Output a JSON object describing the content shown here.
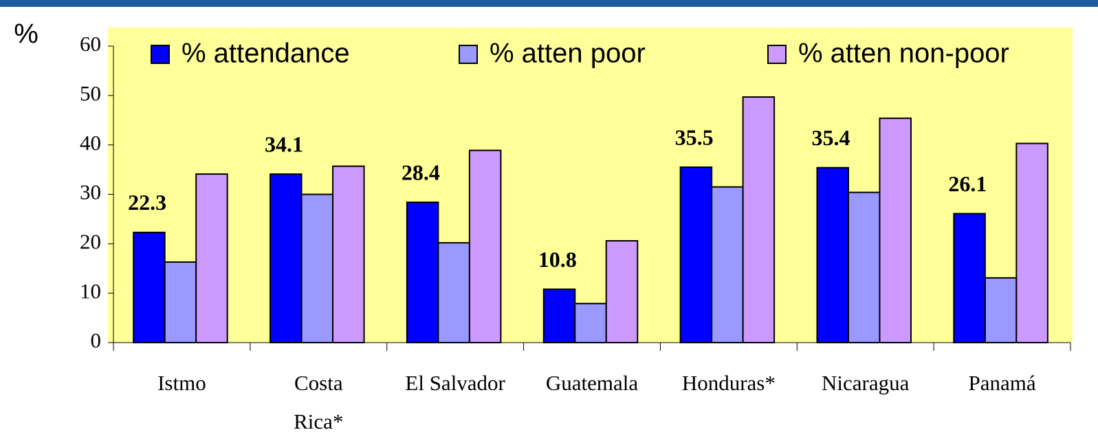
{
  "chart_data": {
    "type": "bar",
    "y_label": "%",
    "categories": [
      "Istmo",
      "Costa\nRica*",
      "El Salvador",
      "Guatemala",
      "Honduras*",
      "Nicaragua",
      "Panamá"
    ],
    "series": [
      {
        "name": "% attendance",
        "color": "#0000ff",
        "values": [
          22.3,
          34.1,
          28.4,
          10.8,
          35.5,
          35.4,
          26.1
        ],
        "show_labels": true
      },
      {
        "name": "% atten poor",
        "color": "#9999ff",
        "values": [
          16.3,
          30,
          20.2,
          7.9,
          31.5,
          30.4,
          13.1
        ]
      },
      {
        "name": "% atten non-poor",
        "color": "#cc99ff",
        "values": [
          34.1,
          35.7,
          38.9,
          20.6,
          49.7,
          45.4,
          40.3
        ]
      }
    ],
    "ylim": [
      0,
      60
    ],
    "yticks": [
      0,
      10,
      20,
      30,
      40,
      50,
      60
    ],
    "plot_background": "#ffff99",
    "legend": "top"
  }
}
